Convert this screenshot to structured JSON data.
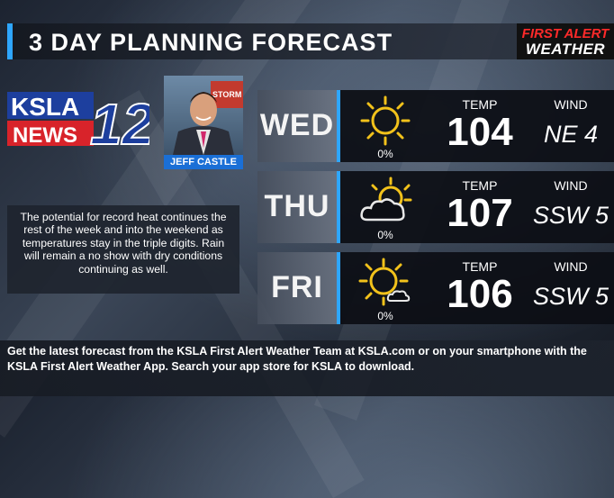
{
  "header": {
    "title": "3 DAY PLANNING FORECAST",
    "brand_line1": "FIRST ALERT",
    "brand_line2": "WEATHER"
  },
  "station": {
    "logo_text_top": "KSLA",
    "logo_text_bottom": "NEWS",
    "logo_channel": "12"
  },
  "anchor": {
    "name": "JEFF CASTLE",
    "backdrop_text": "STORM TRA"
  },
  "description": "The potential for record heat continues the rest of the week and into the weekend as temperatures stay in the triple digits. Rain will remain a no show with dry conditions continuing as well.",
  "days": [
    {
      "day": "WED",
      "icon": "sunny-icon",
      "precip": "0%",
      "temp_label": "TEMP",
      "temp": "104",
      "wind_label": "WIND",
      "wind": "NE 4"
    },
    {
      "day": "THU",
      "icon": "partly-cloudy-icon",
      "precip": "0%",
      "temp_label": "TEMP",
      "temp": "107",
      "wind_label": "WIND",
      "wind": "SSW 5"
    },
    {
      "day": "FRI",
      "icon": "mostly-sunny-icon",
      "precip": "0%",
      "temp_label": "TEMP",
      "temp": "106",
      "wind_label": "WIND",
      "wind": "SSW 5"
    }
  ],
  "footer": "Get the latest forecast from the KSLA First Alert Weather Team at KSLA.com or on your smartphone with the KSLA First Alert Weather App. Search your app store for KSLA to download.",
  "colors": {
    "accent": "#2ea6ff",
    "brand_red": "#ff2a2a",
    "sun_yellow": "#f2c21b"
  }
}
